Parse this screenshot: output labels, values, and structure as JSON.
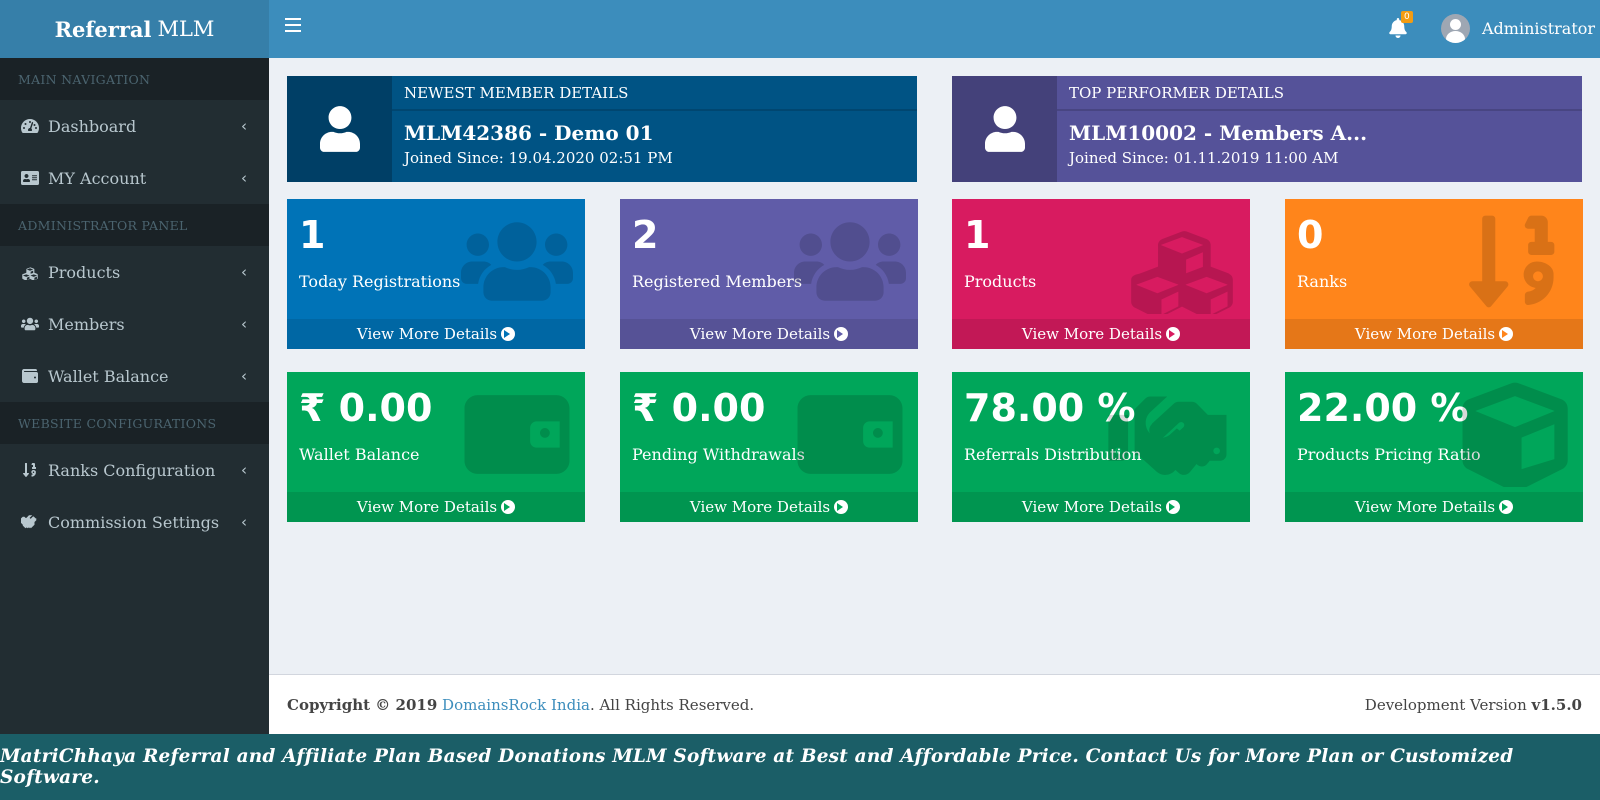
{
  "header": {
    "logo_bold": "Referral",
    "logo_light": "MLM",
    "notification_count": "0",
    "user_name": "Administrator"
  },
  "sidebar": {
    "sections": [
      {
        "title": "MAIN NAVIGATION",
        "items": [
          {
            "label": "Dashboard",
            "icon": "dashboard-icon"
          },
          {
            "label": "MY Account",
            "icon": "id-card-icon"
          }
        ]
      },
      {
        "title": "ADMINISTRATOR PANEL",
        "items": [
          {
            "label": "Products",
            "icon": "cubes-icon"
          },
          {
            "label": "Members",
            "icon": "users-icon"
          },
          {
            "label": "Wallet Balance",
            "icon": "wallet-icon"
          }
        ]
      },
      {
        "title": "WEBSITE CONFIGURATIONS",
        "items": [
          {
            "label": "Ranks Configuration",
            "icon": "sort-numeric-icon"
          },
          {
            "label": "Commission Settings",
            "icon": "handshake-icon"
          }
        ]
      }
    ]
  },
  "info_boxes": [
    {
      "title": "NEWEST MEMBER DETAILS",
      "number": "MLM42386 - Demo 01",
      "sub": "Joined Since: 19.04.2020 02:51 PM",
      "color_main": "#005384",
      "color_icon": "#003f66"
    },
    {
      "title": "TOP PERFORMER DETAILS",
      "number": "MLM10002 - Members A...",
      "sub": "Joined Since: 01.11.2019 11:00 AM",
      "color_main": "#555299",
      "color_icon": "#44417a"
    }
  ],
  "stat_boxes_row1": [
    {
      "value": "1",
      "label": "Today Registrations",
      "link": "View More Details",
      "icon": "users-icon",
      "color": "#0073b7"
    },
    {
      "value": "2",
      "label": "Registered Members",
      "link": "View More Details",
      "icon": "users-icon",
      "color": "#605ca8"
    },
    {
      "value": "1",
      "label": "Products",
      "link": "View More Details",
      "icon": "cubes-icon",
      "color": "#d81b60"
    },
    {
      "value": "0",
      "label": "Ranks",
      "link": "View More Details",
      "icon": "sort-numeric-icon",
      "color": "#ff851b"
    }
  ],
  "stat_boxes_row2": [
    {
      "value": "₹ 0.00",
      "label": "Wallet Balance",
      "link": "View More Details",
      "icon": "wallet-icon",
      "color": "#00a65a"
    },
    {
      "value": "₹ 0.00",
      "label": "Pending Withdrawals",
      "link": "View More Details",
      "icon": "wallet-icon",
      "color": "#00a65a"
    },
    {
      "value": "78.00 %",
      "label": "Referrals Distribution",
      "link": "View More Details",
      "icon": "handshake-icon",
      "color": "#00a65a"
    },
    {
      "value": "22.00 %",
      "label": "Products Pricing Ratio",
      "link": "View More Details",
      "icon": "cube-icon",
      "color": "#00a65a"
    }
  ],
  "footer": {
    "copyright_prefix": "Copyright © 2019",
    "company": "DomainsRock India",
    "rights": ". All Rights Reserved.",
    "version_label": "Development Version",
    "version": "v1.5.0"
  },
  "promo_text": "MatriChhaya Referral and Affiliate Plan Based Donations MLM Software at Best and Affordable Price. Contact Us for More Plan or Customized Software."
}
